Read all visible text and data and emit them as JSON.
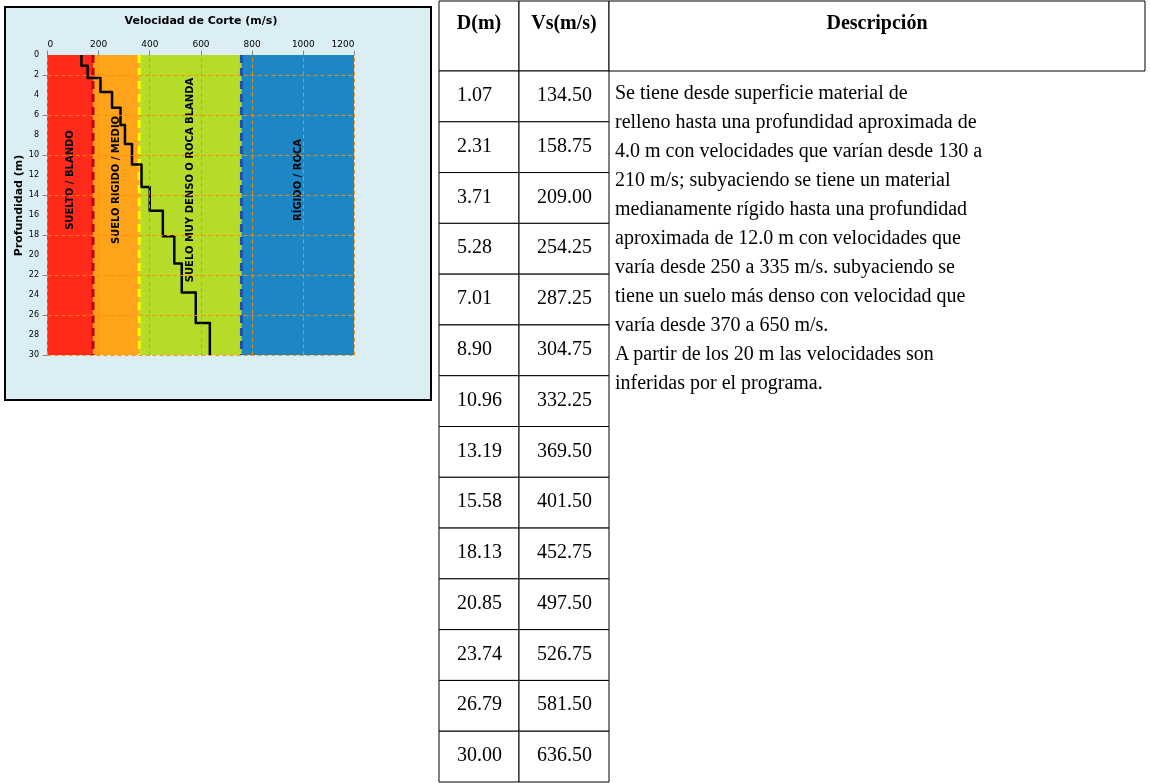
{
  "chart_data": [
    {
      "type": "line",
      "xlabel": "Velocidad de Corte (m/s)",
      "ylabel": "Profundidad (m)",
      "series": [
        {
          "color": "#000000",
          "x": [
            134.5,
            134.5,
            158.75,
            158.75,
            209,
            209,
            254.25,
            254.25,
            287.25,
            287.25,
            304.75,
            304.75,
            332.25,
            332.25,
            369.5,
            369.5,
            401.5,
            401.5,
            452.75,
            452.75,
            497.5,
            497.5,
            526.75,
            526.75,
            581.5,
            581.5,
            636.5,
            636.5
          ],
          "values": [
            0,
            1.07,
            1.07,
            2.31,
            2.31,
            3.71,
            3.71,
            5.28,
            5.28,
            7.01,
            7.01,
            8.9,
            8.9,
            10.96,
            10.96,
            13.19,
            13.19,
            15.58,
            15.58,
            18.13,
            18.13,
            20.85,
            20.85,
            23.74,
            23.74,
            26.79,
            26.79,
            30
          ]
        }
      ],
      "xlim": [
        0,
        1200
      ],
      "xticks": [
        0,
        200,
        400,
        600,
        800,
        1000,
        1200
      ],
      "ylim": [
        30,
        0
      ],
      "yticks": [
        0,
        2,
        4,
        6,
        8,
        10,
        12,
        14,
        16,
        18,
        20,
        22,
        24,
        26,
        28,
        30
      ],
      "grid": true,
      "bands": [
        {
          "axis": "x",
          "from": 0,
          "to": 180,
          "label": "SUELTO / BLANDO",
          "color": "#ff2a1a"
        },
        {
          "axis": "x",
          "from": 180,
          "to": 360,
          "label": "SUELO RIGIDO / MEDIO",
          "color": "#ffa31a"
        },
        {
          "axis": "x",
          "from": 360,
          "to": 760,
          "label": "SUELO MUY DENSO O ROCA BLANDA",
          "color": "#b5dc2a"
        },
        {
          "axis": "x",
          "from": 760,
          "to": 1200,
          "label": "RÍGIDO / ROCA",
          "color": "#1d86c4"
        }
      ],
      "ref_lines": [
        {
          "axis": "x",
          "value": 180,
          "color": "#c00000",
          "line_style": "dashed"
        },
        {
          "axis": "x",
          "value": 360,
          "color": "#ffff00",
          "line_style": "dashed"
        },
        {
          "axis": "x",
          "value": 760,
          "color": "#1f4fb0",
          "line_style": "dashed"
        }
      ]
    },
    {
      "type": "other",
      "annotations": [
        "D(m)",
        "Vs(m/s)",
        "Descripción",
        "1.07",
        "134.50",
        "2.31",
        "158.75",
        "3.71",
        "209.00",
        "5.28",
        "254.25",
        "7.01",
        "287.25",
        "8.90",
        "304.75",
        "10.96",
        "332.25",
        "13.19",
        "369.50",
        "15.58",
        "401.50",
        "18.13",
        "452.75",
        "20.85",
        "497.50",
        "23.74",
        "526.75",
        "26.79",
        "581.50",
        "30.00",
        "636.50",
        "Se tiene desde superficie material de relleno hasta una profundidad aproximada de 4.0 m con velocidades que varían desde 130 a 210 m/s; subyaciendo se tiene un material medianamente rígido hasta una profundidad aproximada de 12.0 m con velocidades que varía desde 250 a 335 m/s. subyaciendo se tiene un suelo más denso con velocidad que varía desde 370 a 650 m/s.",
        "A partir de los 20 m las velocidades son inferidas por el programa."
      ]
    }
  ]
}
